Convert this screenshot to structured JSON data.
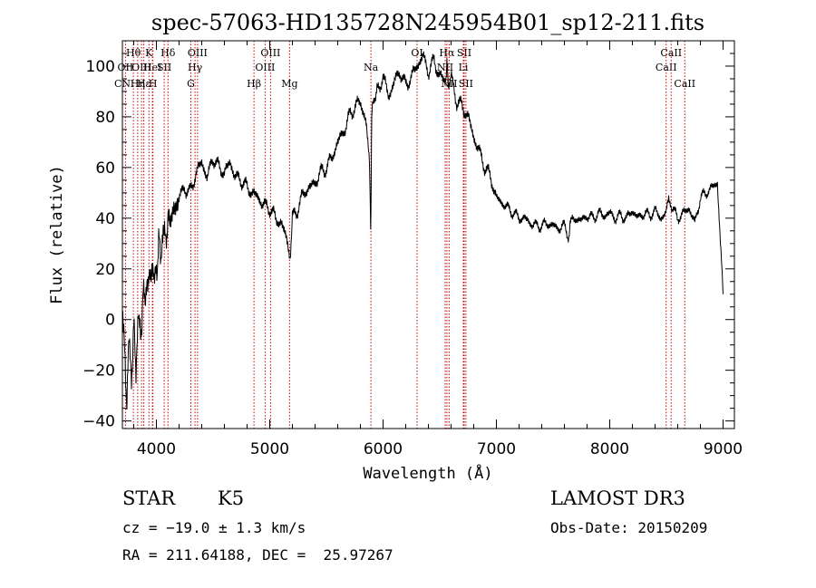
{
  "chart_data": {
    "type": "line",
    "title": "spec-57063-HD135728N245954B01_sp12-211.fits",
    "xlabel": "Wavelength (Å)",
    "ylabel": "Flux (relative)",
    "xlim": [
      3700,
      9100
    ],
    "ylim": [
      -43,
      110
    ],
    "x_ticks": [
      4000,
      5000,
      6000,
      7000,
      8000,
      9000
    ],
    "y_ticks": [
      -40,
      -20,
      0,
      20,
      40,
      60,
      80,
      100
    ],
    "series": [
      {
        "name": "flux",
        "x": [
          3700,
          3720,
          3740,
          3760,
          3780,
          3800,
          3820,
          3840,
          3860,
          3880,
          3900,
          3920,
          3940,
          3960,
          3980,
          4000,
          4020,
          4040,
          4060,
          4080,
          4100,
          4120,
          4150,
          4200,
          4250,
          4300,
          4350,
          4400,
          4450,
          4500,
          4550,
          4600,
          4650,
          4700,
          4750,
          4800,
          4850,
          4900,
          4950,
          5000,
          5050,
          5100,
          5150,
          5180,
          5200,
          5250,
          5300,
          5350,
          5400,
          5450,
          5500,
          5550,
          5600,
          5650,
          5700,
          5750,
          5800,
          5850,
          5880,
          5890,
          5895,
          5900,
          5910,
          5950,
          6000,
          6050,
          6100,
          6150,
          6200,
          6250,
          6300,
          6350,
          6400,
          6450,
          6500,
          6550,
          6563,
          6580,
          6600,
          6650,
          6700,
          6750,
          6800,
          6850,
          6900,
          6950,
          7000,
          7050,
          7100,
          7150,
          7200,
          7250,
          7300,
          7350,
          7400,
          7450,
          7500,
          7550,
          7600,
          7630,
          7650,
          7700,
          7750,
          7800,
          7850,
          7900,
          7950,
          8000,
          8050,
          8100,
          8150,
          8200,
          8250,
          8300,
          8350,
          8400,
          8450,
          8500,
          8520,
          8550,
          8600,
          8650,
          8700,
          8750,
          8800,
          8850,
          8900,
          8950,
          9000
        ],
        "values": [
          5,
          -15,
          -30,
          -8,
          -22,
          -5,
          -18,
          2,
          -8,
          10,
          6,
          18,
          12,
          24,
          14,
          20,
          30,
          24,
          38,
          28,
          42,
          36,
          44,
          48,
          52,
          50,
          58,
          62,
          56,
          64,
          60,
          58,
          62,
          56,
          55,
          52,
          50,
          48,
          45,
          44,
          40,
          38,
          32,
          24,
          40,
          44,
          50,
          52,
          54,
          58,
          60,
          64,
          70,
          74,
          80,
          84,
          86,
          78,
          62,
          36,
          52,
          82,
          86,
          90,
          96,
          88,
          94,
          98,
          92,
          96,
          100,
          104,
          98,
          102,
          96,
          94,
          100,
          92,
          96,
          86,
          84,
          80,
          72,
          66,
          60,
          56,
          48,
          46,
          44,
          42,
          40,
          40,
          38,
          37,
          37,
          38,
          37,
          36,
          37,
          31,
          38,
          40,
          39,
          41,
          40,
          42,
          41,
          42,
          40,
          41,
          40,
          43,
          40,
          42,
          41,
          43,
          40,
          42,
          50,
          44,
          40,
          42,
          44,
          38,
          48,
          50,
          52,
          54,
          10
        ]
      }
    ],
    "lines": [
      {
        "label": "H&#952;",
        "wl": 3797,
        "row": 1
      },
      {
        "label": "OII",
        "wl": 3727,
        "row": 2
      },
      {
        "label": "OIII",
        "wl": 3869,
        "row": 2
      },
      {
        "label": "CN",
        "wl": 3700,
        "row": 3
      },
      {
        "label": "H&#949;",
        "wl": 3889,
        "row": 3
      },
      {
        "label": "K",
        "wl": 3934,
        "row": 1
      },
      {
        "label": "HeI",
        "wl": 3965,
        "row": 2
      },
      {
        "label": "H",
        "wl": 3969,
        "row": 3
      },
      {
        "label": "H&#951;",
        "wl": 3835,
        "row": 3
      },
      {
        "label": "SII",
        "wl": 4069,
        "row": 2
      },
      {
        "label": "H&#948;",
        "wl": 4102,
        "row": 1
      },
      {
        "label": "OIII",
        "wl": 4363,
        "row": 1
      },
      {
        "label": "H&#947;",
        "wl": 4341,
        "row": 2
      },
      {
        "label": "G",
        "wl": 4304,
        "row": 3
      },
      {
        "label": "H&#946;",
        "wl": 4861,
        "row": 3
      },
      {
        "label": "OIII",
        "wl": 4959,
        "row": 2
      },
      {
        "label": "OIII",
        "wl": 5007,
        "row": 1
      },
      {
        "label": "Mg",
        "wl": 5175,
        "row": 3
      },
      {
        "label": "Na",
        "wl": 5893,
        "row": 2
      },
      {
        "label": "OI",
        "wl": 6300,
        "row": 1
      },
      {
        "label": "H&#945;",
        "wl": 6563,
        "row": 1
      },
      {
        "label": "NII",
        "wl": 6548,
        "row": 2
      },
      {
        "label": "NII",
        "wl": 6583,
        "row": 3
      },
      {
        "label": "SII",
        "wl": 6716,
        "row": 1
      },
      {
        "label": "SII",
        "wl": 6731,
        "row": 3
      },
      {
        "label": "Li",
        "wl": 6708,
        "row": 2
      },
      {
        "label": "CaII",
        "wl": 8498,
        "row": 2
      },
      {
        "label": "CaII",
        "wl": 8542,
        "row": 1
      },
      {
        "label": "CaII",
        "wl": 8662,
        "row": 3
      }
    ]
  },
  "info": {
    "class_label": "STAR",
    "subclass": "K5",
    "survey": "LAMOST DR3",
    "cz": "cz = −19.0 ± 1.3 km/s",
    "obs_date": "Obs-Date: 20150209",
    "coords": "RA = 211.64188, DEC =  25.97267"
  },
  "colors": {
    "line_marker": "#cc0000",
    "flux": "#000000"
  }
}
